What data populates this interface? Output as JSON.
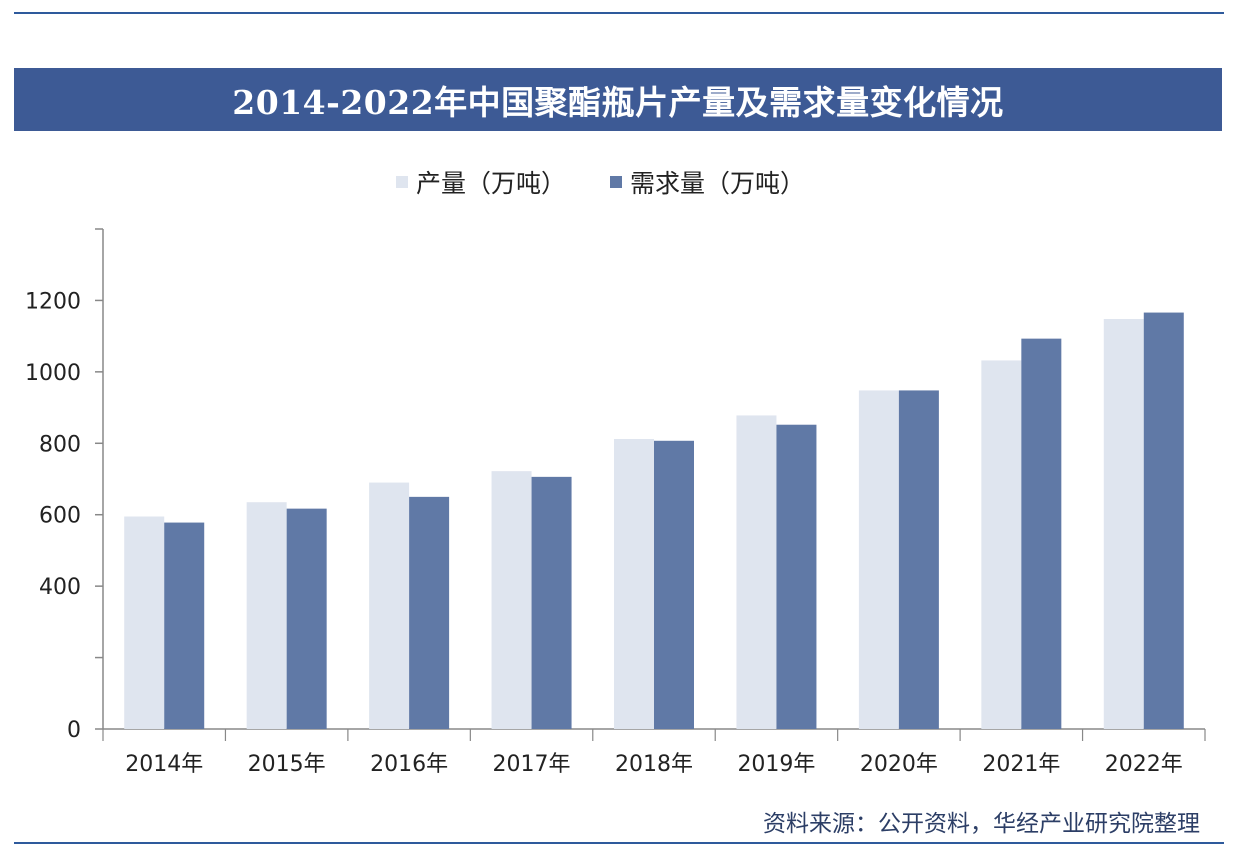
{
  "chart_data": {
    "type": "bar",
    "title": "2014-2022年中国聚酯瓶片产量及需求量变化情况",
    "categories": [
      "2014年",
      "2015年",
      "2016年",
      "2017年",
      "2018年",
      "2019年",
      "2020年",
      "2021年",
      "2022年"
    ],
    "series": [
      {
        "name": "产量（万吨）",
        "color": "#dfe5ef",
        "values": [
          595,
          635,
          690,
          722,
          812,
          878,
          948,
          1032,
          1148
        ]
      },
      {
        "name": "需求量（万吨）",
        "color": "#6079a6",
        "values": [
          578,
          617,
          650,
          706,
          807,
          852,
          948,
          1093,
          1166
        ]
      }
    ],
    "ylim": [
      0,
      1400
    ],
    "yticks": [
      0,
      200,
      400,
      600,
      800,
      1000,
      1200,
      1400
    ],
    "ytick_labels": [
      "0",
      "",
      "400",
      "600",
      "800",
      "1000",
      "1200",
      ""
    ],
    "xlabel": "",
    "ylabel": "",
    "legend_position": "top",
    "grid": false
  },
  "source": "资料来源：公开资料，华经产业研究院整理",
  "colors": {
    "title_bg": "#3d5a95",
    "axis": "#888888"
  }
}
